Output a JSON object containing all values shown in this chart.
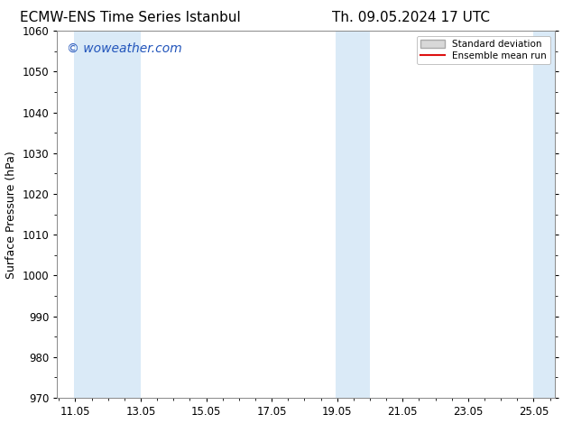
{
  "title_left": "ECMW-ENS Time Series Istanbul",
  "title_right": "Th. 09.05.2024 17 UTC",
  "ylabel": "Surface Pressure (hPa)",
  "bg_color": "#ffffff",
  "plot_bg_color": "#ffffff",
  "ylim": [
    970,
    1060
  ],
  "yticks": [
    970,
    980,
    990,
    1000,
    1010,
    1020,
    1030,
    1040,
    1050,
    1060
  ],
  "xtick_labels": [
    "11.05",
    "13.05",
    "15.05",
    "17.05",
    "19.05",
    "21.05",
    "23.05",
    "25.05"
  ],
  "xtick_positions": [
    11.05,
    13.05,
    15.05,
    17.05,
    19.05,
    21.05,
    23.05,
    25.05
  ],
  "xlim": [
    10.5,
    25.7
  ],
  "shaded_bands": [
    {
      "x_start": 11.0,
      "x_end": 13.05
    },
    {
      "x_start": 19.0,
      "x_end": 20.05
    },
    {
      "x_start": 25.05,
      "x_end": 25.7
    }
  ],
  "band_color": "#daeaf7",
  "watermark_text": "© woweather.com",
  "watermark_color": "#2255bb",
  "legend_std_label": "Standard deviation",
  "legend_mean_label": "Ensemble mean run",
  "legend_std_facecolor": "#d8d8d8",
  "legend_std_edgecolor": "#aaaaaa",
  "legend_mean_color": "#dd1111",
  "title_fontsize": 11,
  "axis_label_fontsize": 9,
  "tick_fontsize": 8.5,
  "watermark_fontsize": 10,
  "legend_fontsize": 7.5
}
